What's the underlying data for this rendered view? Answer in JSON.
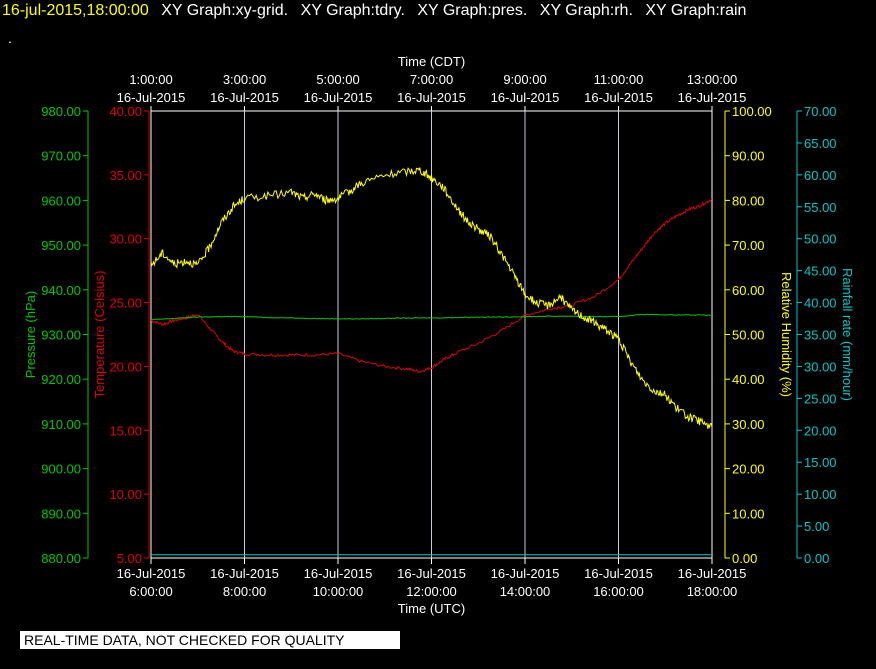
{
  "header": {
    "timestamp": "16-jul-2015,18:00:00",
    "graphs": [
      "XY Graph:xy-grid.",
      "XY Graph:tdry.",
      "XY Graph:pres.",
      "XY Graph:rh.",
      "XY Graph:rain"
    ],
    "second_line": "."
  },
  "disclaimer": "REAL-TIME DATA, NOT CHECKED FOR QUALITY",
  "colors": {
    "background": "#000000",
    "grid": "#c8c8d8",
    "temperature": "#e00000",
    "pressure": "#00c800",
    "humidity": "#ffff00",
    "rain": "#00c8c8"
  },
  "chart_data": {
    "type": "line",
    "grid": true,
    "x_bottom": {
      "label": "Time (UTC)",
      "range_hours": [
        6,
        18
      ],
      "ticks": [
        {
          "hour": 6,
          "date": "16-Jul-2015",
          "time": "6:00:00"
        },
        {
          "hour": 8,
          "date": "16-Jul-2015",
          "time": "8:00:00"
        },
        {
          "hour": 10,
          "date": "16-Jul-2015",
          "time": "10:00:00"
        },
        {
          "hour": 12,
          "date": "16-Jul-2015",
          "time": "12:00:00"
        },
        {
          "hour": 14,
          "date": "16-Jul-2015",
          "time": "14:00:00"
        },
        {
          "hour": 16,
          "date": "16-Jul-2015",
          "time": "16:00:00"
        },
        {
          "hour": 18,
          "date": "16-Jul-2015",
          "time": "18:00:00"
        }
      ]
    },
    "x_top": {
      "label": "Time (CDT)",
      "ticks": [
        {
          "hour": 6,
          "time": "1:00:00",
          "date": "16-Jul-2015"
        },
        {
          "hour": 8,
          "time": "3:00:00",
          "date": "16-Jul-2015"
        },
        {
          "hour": 10,
          "time": "5:00:00",
          "date": "16-Jul-2015"
        },
        {
          "hour": 12,
          "time": "7:00:00",
          "date": "16-Jul-2015"
        },
        {
          "hour": 14,
          "time": "9:00:00",
          "date": "16-Jul-2015"
        },
        {
          "hour": 16,
          "time": "11:00:00",
          "date": "16-Jul-2015"
        },
        {
          "hour": 18,
          "time": "13:00:00",
          "date": "16-Jul-2015"
        }
      ]
    },
    "axes": {
      "pressure": {
        "label": "Pressure (hPa)",
        "range": [
          880,
          980
        ],
        "ticks": [
          "880.00",
          "890.00",
          "900.00",
          "910.00",
          "920.00",
          "930.00",
          "940.00",
          "950.00",
          "960.00",
          "970.00",
          "980.00"
        ]
      },
      "temperature": {
        "label": "Temperature (Celsius)",
        "range": [
          5,
          40
        ],
        "ticks": [
          "5.00",
          "10.00",
          "15.00",
          "20.00",
          "25.00",
          "30.00",
          "35.00",
          "40.00"
        ]
      },
      "humidity": {
        "label": "Relative Humidity (%)",
        "range": [
          0,
          100
        ],
        "ticks": [
          "0.00",
          "10.00",
          "20.00",
          "30.00",
          "40.00",
          "50.00",
          "60.00",
          "70.00",
          "80.00",
          "90.00",
          "100.00"
        ]
      },
      "rain": {
        "label": "Rainfall rate (mm/hour)",
        "range": [
          0,
          70
        ],
        "ticks": [
          "0.00",
          "5.00",
          "10.00",
          "15.00",
          "20.00",
          "25.00",
          "30.00",
          "35.00",
          "40.00",
          "45.00",
          "50.00",
          "55.00",
          "60.00",
          "65.00",
          "70.00"
        ]
      }
    },
    "series": [
      {
        "name": "tdry",
        "axis": "temperature",
        "x": [
          6.0,
          6.25,
          6.5,
          6.75,
          7.0,
          7.25,
          7.5,
          7.75,
          8.0,
          8.5,
          9.0,
          9.5,
          10.0,
          10.5,
          11.0,
          11.5,
          11.75,
          12.0,
          12.25,
          12.5,
          13.0,
          13.5,
          14.0,
          14.5,
          15.0,
          15.5,
          16.0,
          16.25,
          16.5,
          16.75,
          17.0,
          17.25,
          17.5,
          17.75,
          18.0
        ],
        "y": [
          23.6,
          23.3,
          23.6,
          23.8,
          24.1,
          23.0,
          22.0,
          21.2,
          21.0,
          20.9,
          20.9,
          20.9,
          21.0,
          20.4,
          20.0,
          19.8,
          19.6,
          19.9,
          20.5,
          21.0,
          21.8,
          22.8,
          24.0,
          24.5,
          24.8,
          25.5,
          26.8,
          28.0,
          29.2,
          30.4,
          31.2,
          31.8,
          32.3,
          32.6,
          33.1
        ]
      },
      {
        "name": "pres",
        "axis": "pressure",
        "x": [
          6.0,
          6.5,
          7.0,
          7.5,
          8.0,
          8.5,
          9.0,
          9.5,
          10.0,
          10.5,
          11.0,
          11.5,
          12.0,
          12.5,
          13.0,
          13.5,
          14.0,
          14.5,
          15.0,
          15.5,
          16.0,
          16.5,
          17.0,
          17.5,
          18.0
        ],
        "y": [
          933.3,
          933.6,
          933.9,
          934.0,
          934.0,
          933.8,
          933.7,
          933.6,
          933.5,
          933.5,
          933.6,
          933.7,
          933.7,
          933.8,
          933.9,
          933.9,
          934.0,
          934.1,
          934.1,
          934.0,
          934.0,
          934.5,
          934.4,
          934.4,
          934.3
        ]
      },
      {
        "name": "rh",
        "axis": "humidity",
        "x": [
          6.0,
          6.25,
          6.5,
          6.75,
          7.0,
          7.25,
          7.5,
          7.75,
          8.0,
          8.5,
          9.0,
          9.25,
          9.5,
          9.75,
          10.0,
          10.25,
          10.5,
          11.0,
          11.5,
          11.75,
          12.0,
          12.25,
          12.5,
          12.75,
          13.0,
          13.25,
          13.5,
          13.75,
          14.0,
          14.25,
          14.5,
          14.75,
          15.0,
          15.25,
          15.5,
          15.75,
          16.0,
          16.25,
          16.5,
          16.75,
          17.0,
          17.25,
          17.5,
          17.75,
          18.0
        ],
        "y": [
          65.5,
          68.2,
          65.7,
          66.5,
          65.5,
          69.5,
          75.0,
          78.5,
          80.5,
          81.0,
          81.8,
          80.5,
          81.5,
          80.0,
          80.5,
          82.0,
          84.0,
          85.5,
          86.5,
          86.8,
          85.0,
          83.0,
          79.0,
          75.5,
          73.5,
          72.0,
          68.0,
          63.5,
          59.0,
          57.0,
          56.5,
          58.5,
          55.5,
          54.0,
          52.5,
          51.0,
          49.0,
          44.0,
          40.0,
          37.5,
          36.5,
          33.5,
          31.5,
          30.5,
          29.2
        ]
      },
      {
        "name": "rain",
        "axis": "rain",
        "x": [
          6.0,
          18.0
        ],
        "y": [
          0.5,
          0.5
        ]
      }
    ]
  }
}
